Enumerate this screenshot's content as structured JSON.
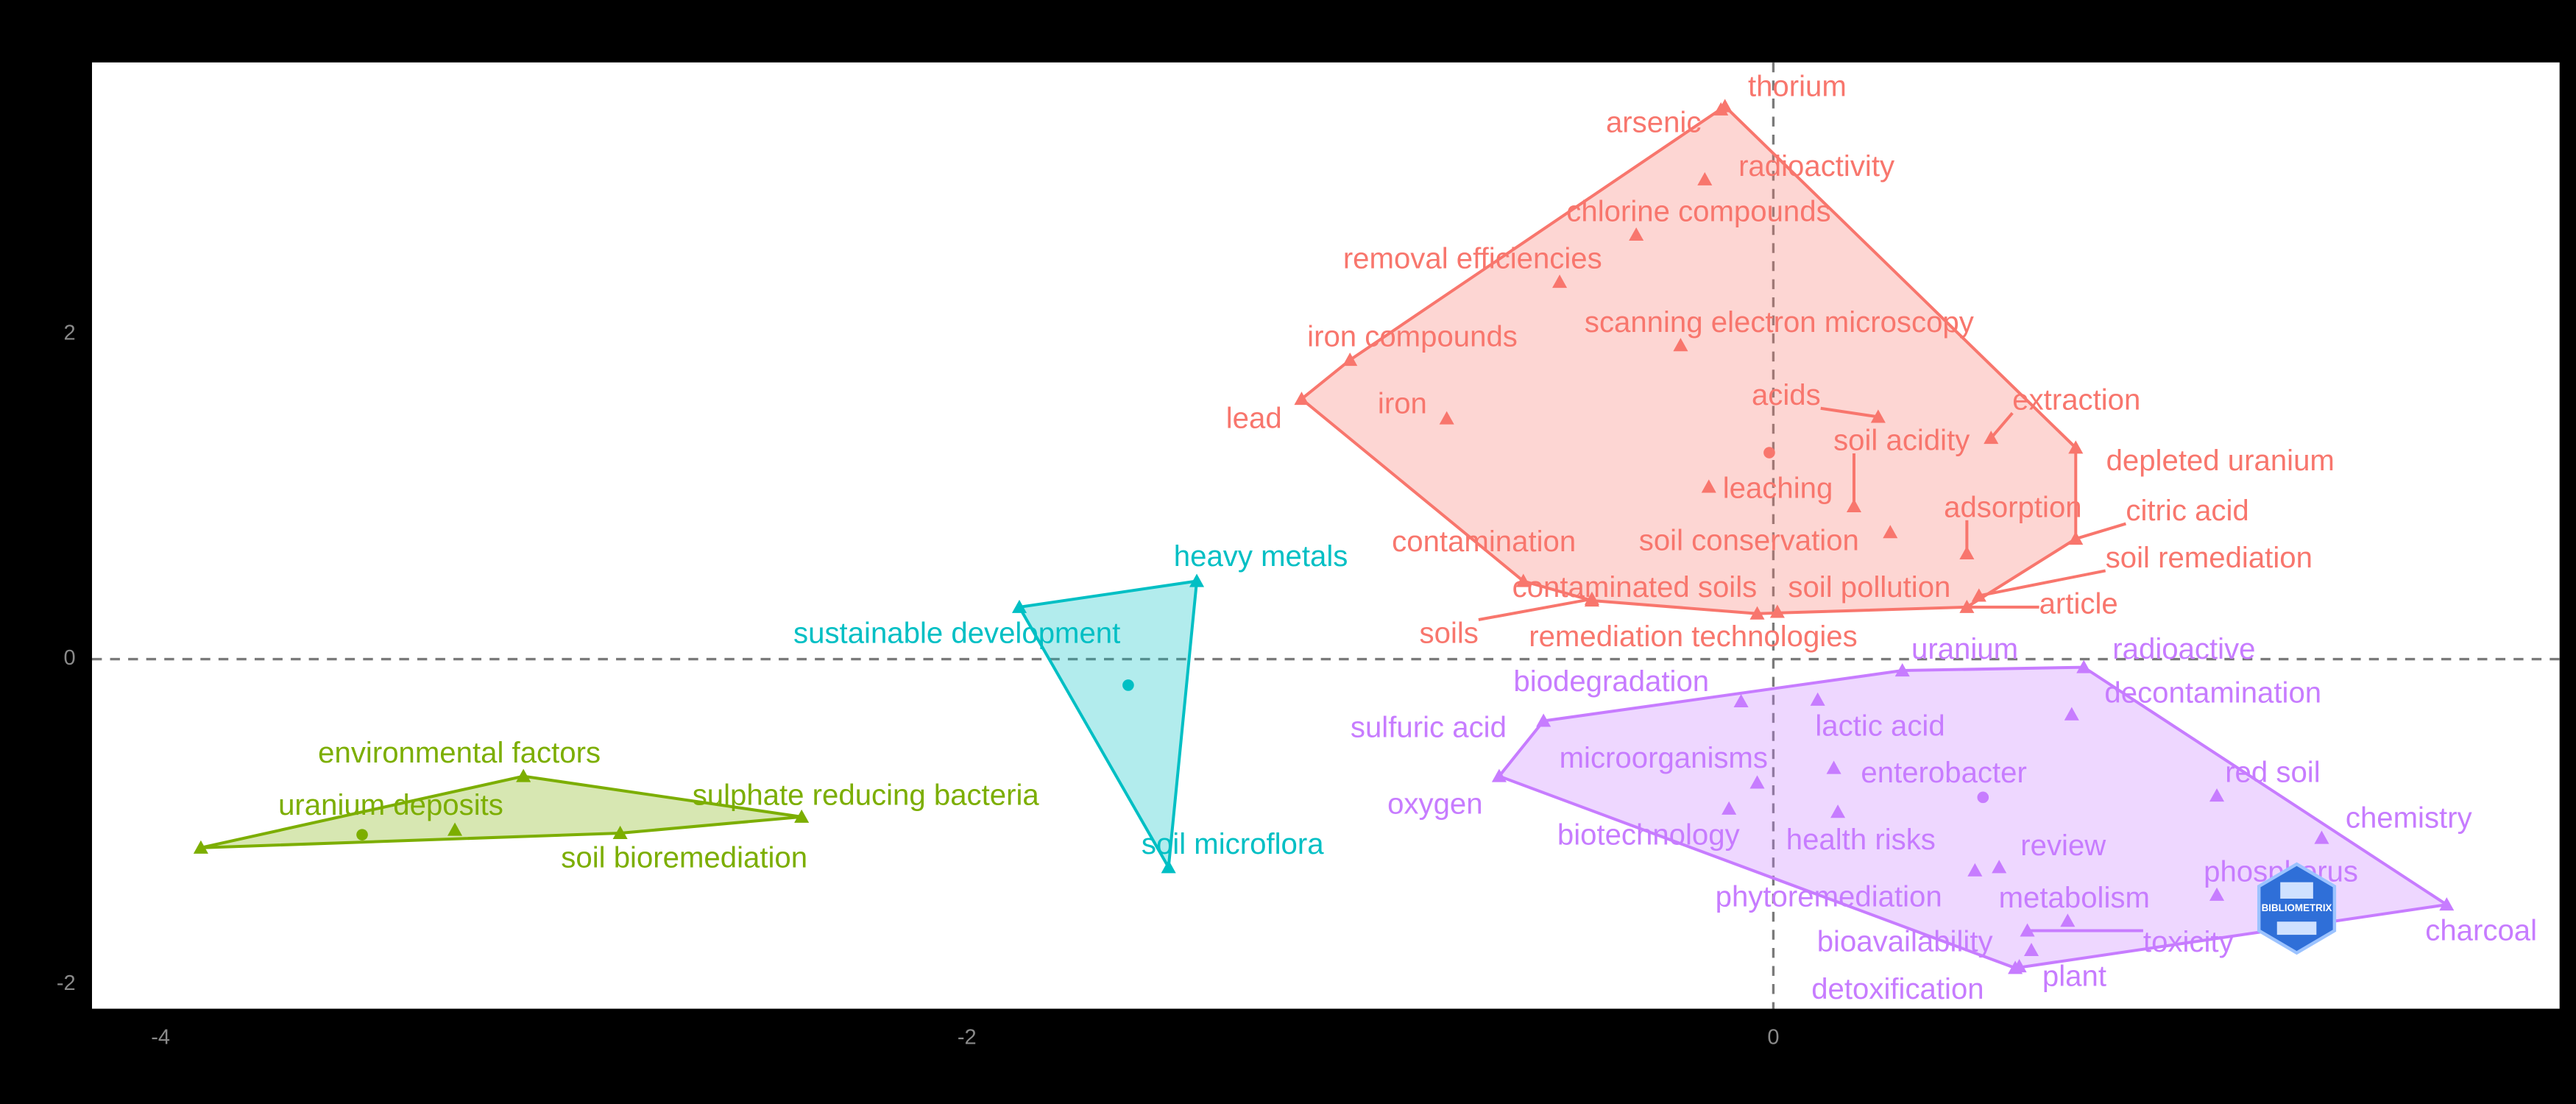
{
  "chart_data": {
    "type": "scatter",
    "xlim": [
      -4.17,
      1.95
    ],
    "ylim": [
      -2.15,
      3.67
    ],
    "xticks": [
      -4,
      -2,
      0
    ],
    "yticks": [
      -2,
      0,
      2
    ],
    "watermark": "BIBLIOMETRIX",
    "series": [
      {
        "color": "#F8766D",
        "labels": [
          "thorium",
          "arsenic",
          "radioactivity",
          "chlorine compounds",
          "removal efficiencies",
          "scanning electron microscopy",
          "iron compounds",
          "iron",
          "lead",
          "acids",
          "extraction",
          "depleted uranium",
          "soil acidity",
          "leaching",
          "adsorption",
          "citric acid",
          "soil remediation",
          "contamination",
          "soil conservation",
          "contaminated soils",
          "soil pollution",
          "article",
          "soils",
          "remediation technologies"
        ],
        "x": [
          -0.12,
          -0.13,
          -0.17,
          -0.34,
          -0.53,
          -0.23,
          -1.05,
          -0.81,
          -1.17,
          0.26,
          0.54,
          0.75,
          0.2,
          -0.16,
          0.48,
          0.75,
          0.51,
          -0.62,
          0.29,
          -0.45,
          0.01,
          0.48,
          -0.45,
          -0.04
        ],
        "y": [
          3.4,
          3.38,
          2.95,
          2.61,
          2.32,
          1.93,
          1.84,
          1.48,
          1.6,
          1.49,
          1.36,
          1.3,
          0.94,
          1.06,
          0.65,
          0.74,
          0.39,
          0.48,
          0.78,
          0.36,
          0.29,
          0.32,
          0.37,
          0.28
        ],
        "centroid": [
          -0.01,
          1.27
        ]
      },
      {
        "color": "#00BFC4",
        "labels": [
          "heavy metals",
          "sustainable development",
          "soil microflora"
        ],
        "x": [
          -1.43,
          -1.87,
          -1.5
        ],
        "y": [
          0.48,
          0.32,
          -1.28
        ],
        "centroid": [
          -1.6,
          -0.16
        ]
      },
      {
        "color": "#7CAE00",
        "labels": [
          "environmental factors",
          "uranium deposits",
          "sulphate reducing bacteria",
          "soil bioremediation",
          null
        ],
        "x": [
          -3.1,
          -3.27,
          -2.41,
          -2.86,
          -3.9
        ],
        "y": [
          -0.72,
          -1.05,
          -0.97,
          -1.07,
          -1.16
        ],
        "centroid": [
          -3.5,
          -1.08
        ]
      },
      {
        "color": "#C77CFF",
        "labels": [
          "uranium",
          "radioactive",
          "decontamination",
          "biodegradation",
          "sulfuric acid",
          "lactic acid",
          "microorganisms",
          "enterobacter",
          "red soil",
          "oxygen",
          "chemistry",
          "biotechnology",
          "health risks",
          "review",
          "phosphorus",
          "phytoremediation",
          "metabolism",
          "charcoal",
          "toxicity",
          "bioavailability",
          "plant",
          "detoxification"
        ],
        "x": [
          0.32,
          0.77,
          0.74,
          -0.08,
          -0.57,
          0.11,
          -0.04,
          0.15,
          1.1,
          -0.68,
          1.36,
          -0.11,
          0.16,
          0.56,
          1.1,
          0.5,
          0.73,
          1.67,
          0.63,
          0.64,
          0.6,
          0.61
        ],
        "y": [
          -0.07,
          -0.05,
          -0.34,
          -0.26,
          -0.38,
          -0.25,
          -0.76,
          -0.67,
          -0.84,
          -0.72,
          -1.1,
          -0.92,
          -0.94,
          -1.28,
          -1.45,
          -1.3,
          -1.61,
          -1.51,
          -1.67,
          -1.79,
          -1.9,
          -1.89
        ],
        "centroid": [
          0.52,
          -0.85
        ]
      }
    ]
  }
}
